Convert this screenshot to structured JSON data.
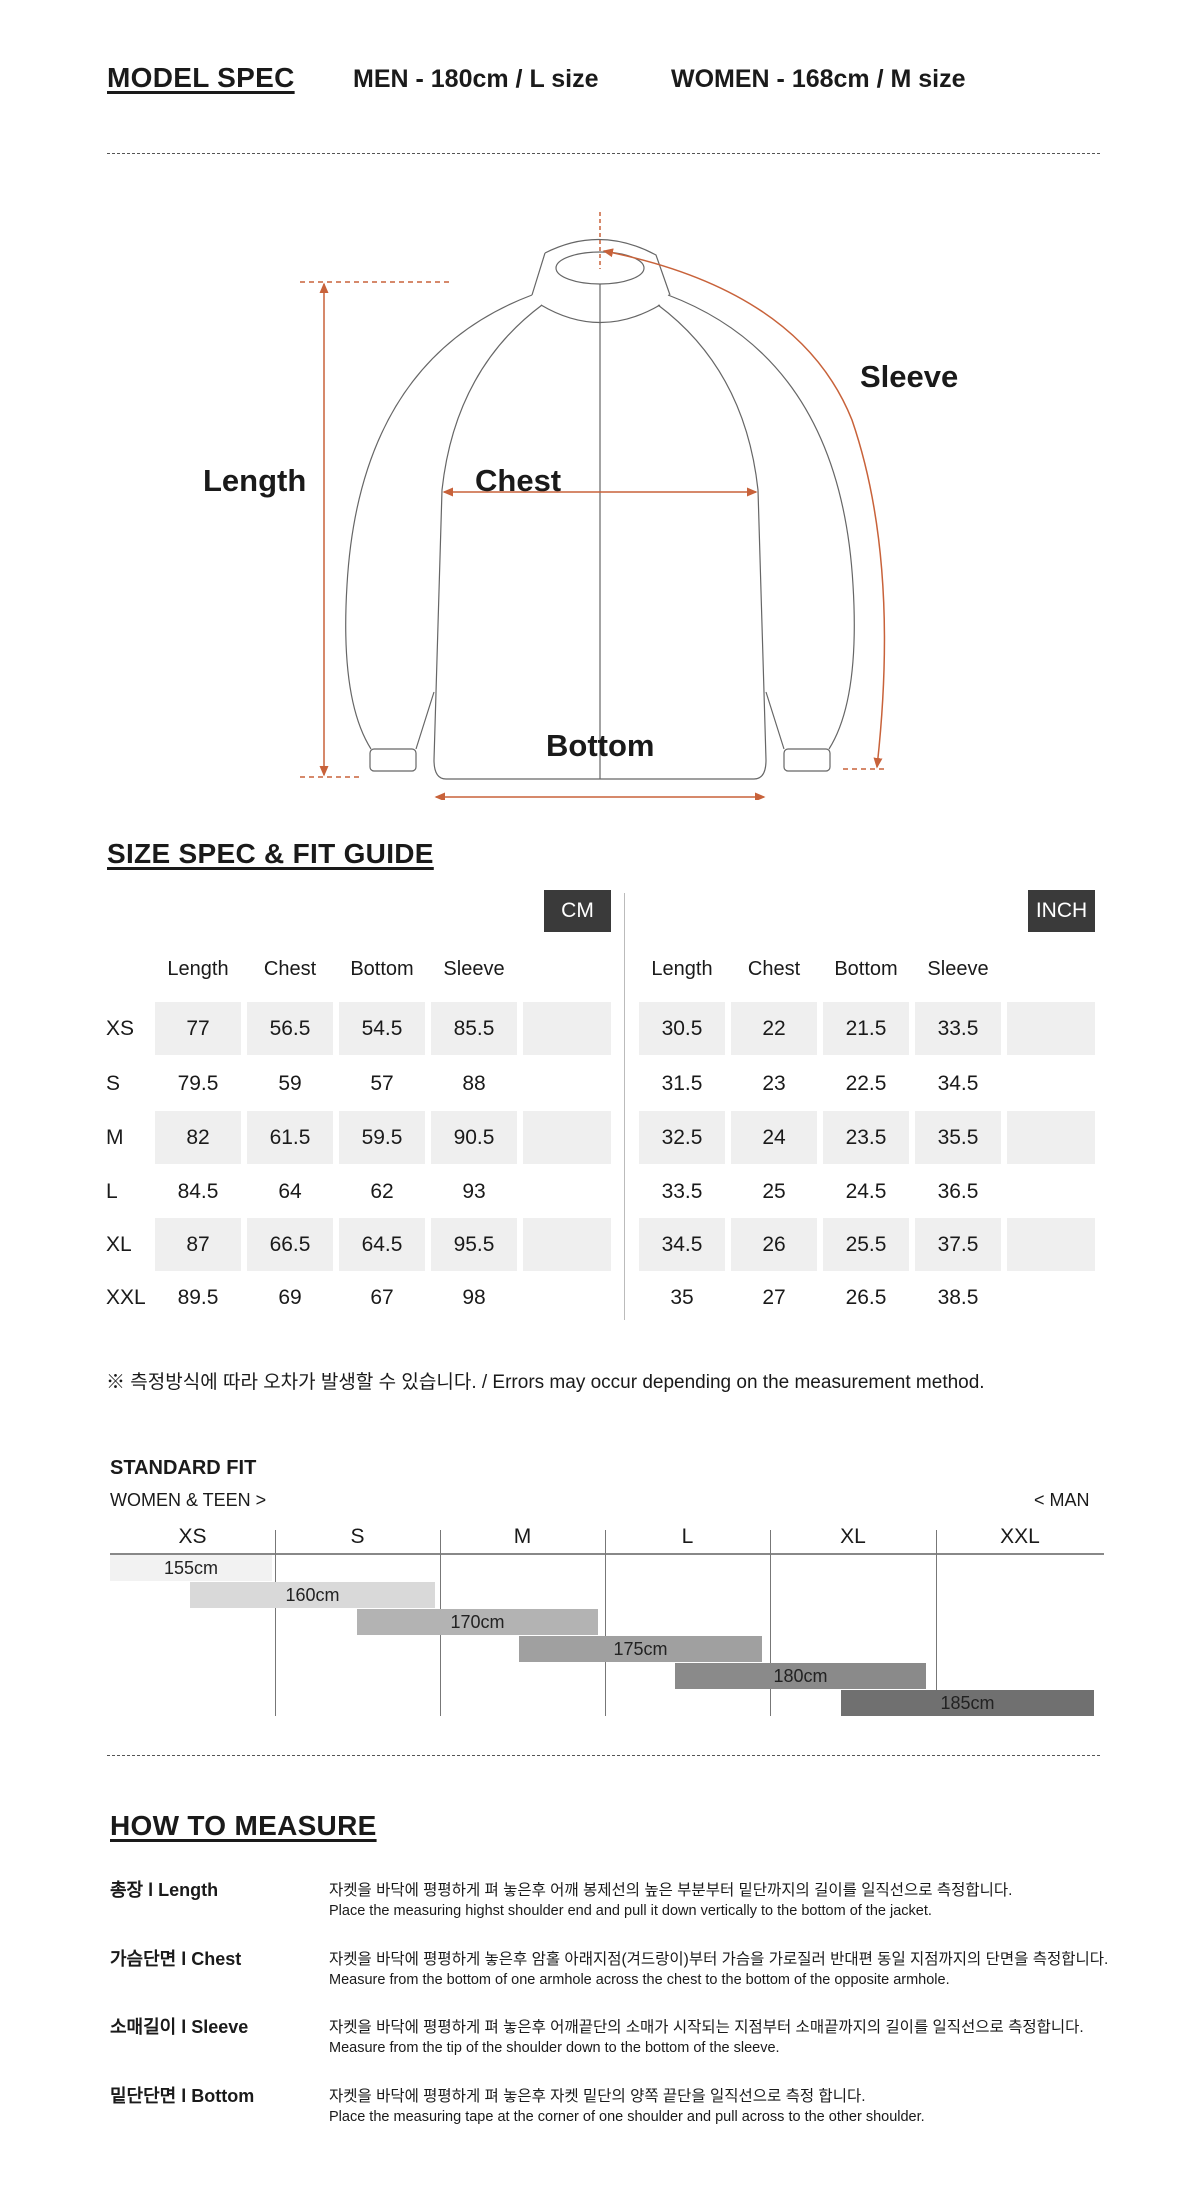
{
  "model_spec": {
    "title": "MODEL SPEC",
    "men": "MEN - 180cm / L size",
    "women": "WOMEN - 168cm / M size"
  },
  "diagram": {
    "labels": {
      "length": "Length",
      "chest": "Chest",
      "sleeve": "Sleeve",
      "bottom": "Bottom"
    },
    "accent_color": "#c8623a"
  },
  "size_spec": {
    "title": "SIZE SPEC  &  FIT GUIDE",
    "cm_label": "CM",
    "inch_label": "INCH",
    "columns": [
      "Length",
      "Chest",
      "Bottom",
      "Sleeve"
    ],
    "sizes": [
      "XS",
      "S",
      "M",
      "L",
      "XL",
      "XXL"
    ],
    "cm": [
      [
        "77",
        "56.5",
        "54.5",
        "85.5"
      ],
      [
        "79.5",
        "59",
        "57",
        "88"
      ],
      [
        "82",
        "61.5",
        "59.5",
        "90.5"
      ],
      [
        "84.5",
        "64",
        "62",
        "93"
      ],
      [
        "87",
        "66.5",
        "64.5",
        "95.5"
      ],
      [
        "89.5",
        "69",
        "67",
        "98"
      ]
    ],
    "inch": [
      [
        "30.5",
        "22",
        "21.5",
        "33.5"
      ],
      [
        "31.5",
        "23",
        "22.5",
        "34.5"
      ],
      [
        "32.5",
        "24",
        "23.5",
        "35.5"
      ],
      [
        "33.5",
        "25",
        "24.5",
        "36.5"
      ],
      [
        "34.5",
        "26",
        "25.5",
        "37.5"
      ],
      [
        "35",
        "27",
        "26.5",
        "38.5"
      ]
    ],
    "note": "※ 측정방식에 따라 오차가 발생할 수 있습니다. / Errors may occur depending on the measurement method."
  },
  "standard_fit": {
    "title": "STANDARD FIT",
    "left_label": "WOMEN & TEEN >",
    "right_label": "< MAN",
    "sizes": [
      "XS",
      "S",
      "M",
      "L",
      "XL",
      "XXL"
    ],
    "heights": [
      "155cm",
      "160cm",
      "170cm",
      "175cm",
      "180cm",
      "185cm"
    ],
    "bar_colors": [
      "#f2f2f2",
      "#d9d9d9",
      "#b3b3b3",
      "#a0a0a0",
      "#8a8a8a",
      "#707070"
    ]
  },
  "how_to_measure": {
    "title": "HOW TO MEASURE",
    "items": [
      {
        "label": "총장 l Length",
        "ko": "자켓을 바닥에 평평하게 펴 놓은후 어깨 봉제선의 높은 부분부터 밑단까지의 길이를 일직선으로 측정합니다.",
        "en": "Place the measuring highst shoulder end and pull it down vertically to the bottom of the jacket."
      },
      {
        "label": "가슴단면 l Chest",
        "ko": "자켓을 바닥에 평평하게 놓은후 암홀 아래지점(겨드랑이)부터 가슴을 가로질러 반대편 동일 지점까지의 단면을 측정합니다.",
        "en": "Measure from the bottom of one armhole across the chest to the bottom of the opposite armhole."
      },
      {
        "label": "소매길이 l Sleeve",
        "ko": "자켓을 바닥에 평평하게 펴 놓은후 어깨끝단의 소매가 시작되는 지점부터 소매끝까지의 길이를 일직선으로 측정합니다.",
        "en": "Measure from the tip of the shoulder down to the bottom of the sleeve."
      },
      {
        "label": "밑단단면 l Bottom",
        "ko": "자켓을 바닥에 평평하게 펴 놓은후 자켓 밑단의 양쪽 끝단을 일직선으로 측정 합니다.",
        "en": "Place the measuring tape at the corner of one shoulder and pull across to the other shoulder."
      }
    ]
  }
}
